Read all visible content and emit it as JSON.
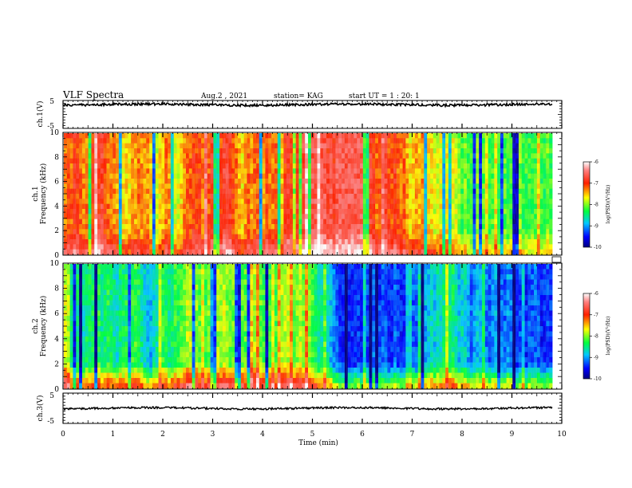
{
  "header": {
    "title": "VLF Spectra",
    "date": "Aug.2 , 2021",
    "station": "station= KAG",
    "start": "start UT = 1 : 20: 1"
  },
  "chart_data": [
    {
      "type": "line",
      "panel": "ch1-waveform",
      "ylabel": "ch.1(V)",
      "yticks": [
        "5",
        "-5"
      ],
      "ylim": [
        -5,
        5
      ],
      "approx_level": 3.5
    },
    {
      "type": "heatmap",
      "panel": "ch1-spectrogram",
      "ylabel_line1": "ch.1",
      "ylabel_line2": "Frequency (kHz)",
      "yticks": [
        "0",
        "2",
        "4",
        "6",
        "8",
        "10"
      ],
      "ylim": [
        0,
        10
      ],
      "colorbar": {
        "label": "log(PSD)(V²/Hz)",
        "ticks": [
          "-6",
          "-7",
          "-8",
          "-9",
          "-10"
        ],
        "range": [
          -10,
          -6
        ]
      },
      "dominant_level": -7
    },
    {
      "type": "heatmap",
      "panel": "ch2-spectrogram",
      "ylabel_line1": "ch.2",
      "ylabel_line2": "Frequency (kHz)",
      "yticks": [
        "0",
        "2",
        "4",
        "6",
        "8",
        "10"
      ],
      "ylim": [
        0,
        10
      ],
      "colorbar": {
        "label": "log(PSD)(V²/Hz)",
        "ticks": [
          "-6",
          "-7",
          "-8",
          "-9",
          "-10"
        ],
        "range": [
          -10,
          -6
        ]
      },
      "dominant_level": -8.5
    },
    {
      "type": "line",
      "panel": "ch3-waveform",
      "ylabel": "ch.3(V)",
      "yticks": [
        "5",
        "-5"
      ],
      "ylim": [
        -5,
        5
      ],
      "approx_level": 0
    }
  ],
  "xaxis": {
    "label": "Time (min)",
    "ticks": [
      "0",
      "1",
      "2",
      "3",
      "4",
      "5",
      "6",
      "7",
      "8",
      "9",
      "10"
    ],
    "range": [
      0,
      10
    ]
  }
}
